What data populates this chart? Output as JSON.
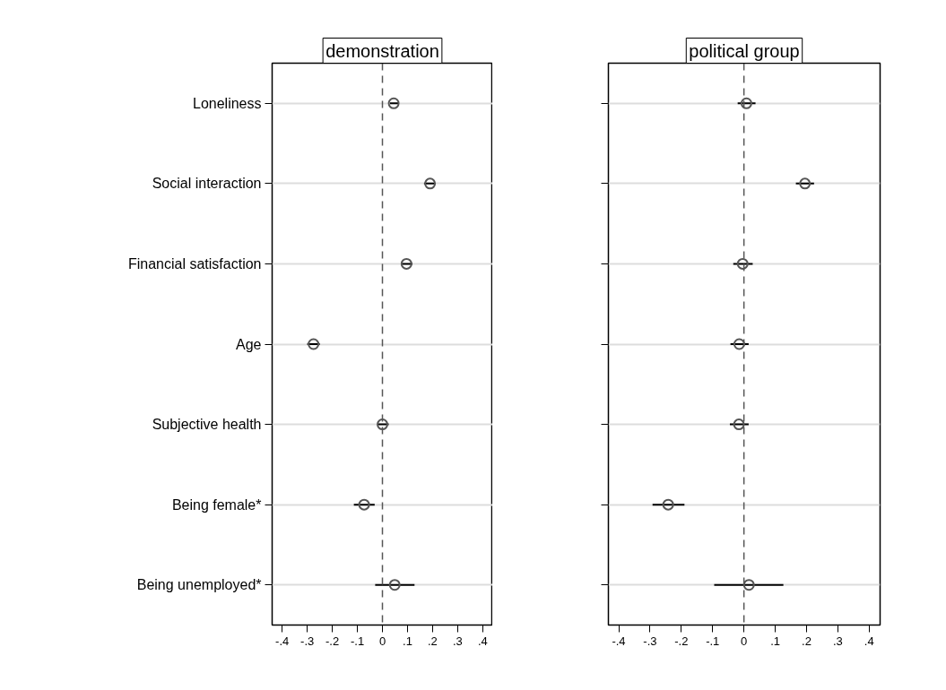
{
  "chart_data": [
    {
      "type": "scatter",
      "title": "demonstration",
      "orientation": "horizontal",
      "categories": [
        "Loneliness",
        "Social interaction",
        "Financial satisfaction",
        "Age",
        "Subjective health",
        "Being female*",
        "Being unemployed*"
      ],
      "series": [
        {
          "color": "#555555",
          "values": [
            0.045,
            0.19,
            0.096,
            -0.275,
            0.0,
            -0.073,
            0.049
          ],
          "errors": [
            [
              0.03,
              0.065
            ],
            [
              0.166,
              0.21
            ],
            [
              0.075,
              0.12
            ],
            [
              -0.3,
              -0.25
            ],
            [
              -0.02,
              0.025
            ],
            [
              -0.114,
              -0.031
            ],
            [
              -0.029,
              0.128
            ]
          ]
        }
      ],
      "xlim": [
        -0.44,
        0.44
      ],
      "xticks": [
        {
          "value": -0.4,
          "label": "-.4"
        },
        {
          "value": -0.3,
          "label": "-.3"
        },
        {
          "value": -0.2,
          "label": "-.2"
        },
        {
          "value": -0.1,
          "label": "-.1"
        },
        0,
        {
          "value": 0.1,
          "label": ".1"
        },
        {
          "value": 0.2,
          "label": ".2"
        },
        {
          "value": 0.3,
          "label": ".3"
        },
        {
          "value": 0.4,
          "label": ".4"
        }
      ],
      "ref_lines": [
        {
          "axis": "x",
          "value": 0,
          "color": "#555555",
          "line_style": "dashed"
        }
      ],
      "grid": "y",
      "marker": "circle"
    },
    {
      "type": "scatter",
      "title": "political group",
      "orientation": "horizontal",
      "categories": [
        null,
        null,
        null,
        null,
        null,
        null,
        null
      ],
      "series": [
        {
          "color": "#555555",
          "values": [
            0.008,
            0.195,
            -0.004,
            -0.015,
            -0.016,
            -0.242,
            0.016
          ],
          "errors": [
            [
              -0.02,
              0.037
            ],
            [
              0.166,
              0.224
            ],
            [
              -0.034,
              0.028
            ],
            [
              -0.043,
              0.015
            ],
            [
              -0.045,
              0.015
            ],
            [
              -0.292,
              -0.19
            ],
            [
              -0.095,
              0.126
            ]
          ]
        }
      ],
      "xlim": [
        -0.433,
        0.435
      ],
      "xticks": [
        {
          "value": -0.4,
          "label": "-.4"
        },
        {
          "value": -0.3,
          "label": "-.3"
        },
        {
          "value": -0.2,
          "label": "-.2"
        },
        {
          "value": -0.1,
          "label": "-.1"
        },
        0,
        {
          "value": 0.1,
          "label": ".1"
        },
        {
          "value": 0.2,
          "label": ".2"
        },
        {
          "value": 0.3,
          "label": ".3"
        },
        {
          "value": 0.4,
          "label": ".4"
        }
      ],
      "ref_lines": [
        {
          "axis": "x",
          "value": 0,
          "color": "#555555",
          "line_style": "dashed"
        }
      ],
      "grid": "y",
      "marker": "circle"
    }
  ]
}
